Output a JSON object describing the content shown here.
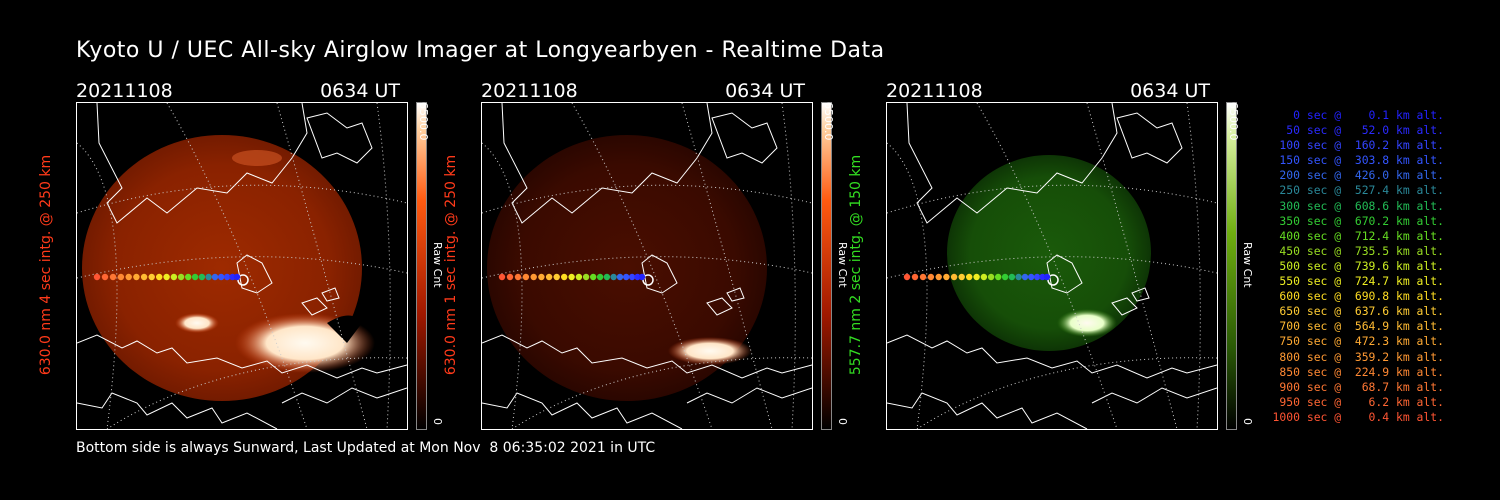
{
  "title": "Kyoto U / UEC All-sky Airglow Imager at Longyearbyen - Realtime Data",
  "panels": [
    {
      "date": "20211108",
      "time": "0634 UT",
      "label": "630.0 nm  4 sec intg. @ 250 km",
      "label_color": "#ff3a1a",
      "scale_max": "6500.0",
      "scale_unit": "Raw Cnt",
      "scale_min": "0",
      "colormap": "red"
    },
    {
      "date": "20211108",
      "time": "0634 UT",
      "label": "630.0 nm  1 sec intg. @ 250 km",
      "label_color": "#ff3a1a",
      "scale_max": "6500.0",
      "scale_unit": "Raw Cnt",
      "scale_min": "0",
      "colormap": "red"
    },
    {
      "date": "20211108",
      "time": "0634 UT",
      "label": "557.7 nm  2 sec intg. @ 150 km",
      "label_color": "#33dd22",
      "scale_max": "6500.0",
      "scale_unit": "Raw Cnt",
      "scale_min": "0",
      "colormap": "green"
    }
  ],
  "legend": [
    {
      "text": "   0 sec @    0.1 km alt.",
      "color": "#2222ff"
    },
    {
      "text": "  50 sec @   52.0 km alt.",
      "color": "#2a2aff"
    },
    {
      "text": " 100 sec @  160.2 km alt.",
      "color": "#3344ff"
    },
    {
      "text": " 150 sec @  303.8 km alt.",
      "color": "#3355ff"
    },
    {
      "text": " 200 sec @  426.0 km alt.",
      "color": "#3366ee"
    },
    {
      "text": " 250 sec @  527.4 km alt.",
      "color": "#2a8899"
    },
    {
      "text": " 300 sec @  608.6 km alt.",
      "color": "#22bb55"
    },
    {
      "text": " 350 sec @  670.2 km alt.",
      "color": "#33cc33"
    },
    {
      "text": " 400 sec @  712.4 km alt.",
      "color": "#66dd22"
    },
    {
      "text": " 450 sec @  735.5 km alt.",
      "color": "#99dd22"
    },
    {
      "text": " 500 sec @  739.6 km alt.",
      "color": "#ccee22"
    },
    {
      "text": " 550 sec @  724.7 km alt.",
      "color": "#eeee22"
    },
    {
      "text": " 600 sec @  690.8 km alt.",
      "color": "#ffdd22"
    },
    {
      "text": " 650 sec @  637.6 km alt.",
      "color": "#ffcc33"
    },
    {
      "text": " 700 sec @  564.9 km alt.",
      "color": "#ffbb33"
    },
    {
      "text": " 750 sec @  472.3 km alt.",
      "color": "#ffaa33"
    },
    {
      "text": " 800 sec @  359.2 km alt.",
      "color": "#ff9933"
    },
    {
      "text": " 850 sec @  224.9 km alt.",
      "color": "#ff8833"
    },
    {
      "text": " 900 sec @   68.7 km alt.",
      "color": "#ff7733"
    },
    {
      "text": " 950 sec @    6.2 km alt.",
      "color": "#ff6633"
    },
    {
      "text": "1000 sec @    0.4 km alt.",
      "color": "#ff5533"
    }
  ],
  "footer": "Bottom side is always Sunward, Last Updated at Mon Nov  8 06:35:02 2021 in UTC"
}
